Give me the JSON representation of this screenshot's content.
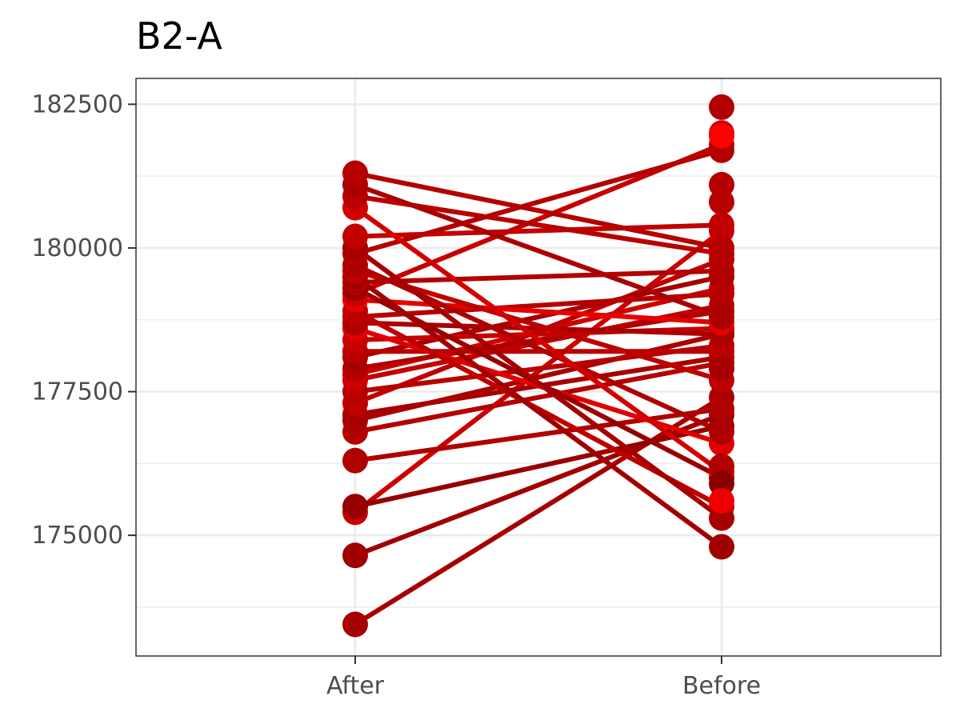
{
  "chart_data": {
    "type": "line",
    "title": "B2-A",
    "xlabel": "",
    "ylabel": "",
    "categories": [
      "After",
      "Before"
    ],
    "y_ticks": [
      175000,
      177500,
      180000,
      182500
    ],
    "ylim": [
      172900,
      182950
    ],
    "grid": true,
    "legend": "none",
    "pairs": [
      {
        "after": 173450,
        "before": 177400,
        "color": "#a60000"
      },
      {
        "after": 174650,
        "before": 177100,
        "color": "#a00000"
      },
      {
        "after": 175400,
        "before": 180300,
        "color": "#cc0000"
      },
      {
        "after": 175500,
        "before": 176900,
        "color": "#960000"
      },
      {
        "after": 176300,
        "before": 177200,
        "color": "#b00000"
      },
      {
        "after": 176800,
        "before": 178000,
        "color": "#b40000"
      },
      {
        "after": 177000,
        "before": 178500,
        "color": "#aa0000"
      },
      {
        "after": 177100,
        "before": 178100,
        "color": "#a80000"
      },
      {
        "after": 177300,
        "before": 179800,
        "color": "#c00000"
      },
      {
        "after": 177500,
        "before": 178300,
        "color": "#b80000"
      },
      {
        "after": 177700,
        "before": 179000,
        "color": "#c40000"
      },
      {
        "after": 177800,
        "before": 179300,
        "color": "#d00000"
      },
      {
        "after": 177900,
        "before": 178900,
        "color": "#b00000"
      },
      {
        "after": 178100,
        "before": 179500,
        "color": "#a40000"
      },
      {
        "after": 178200,
        "before": 178200,
        "color": "#ba0000"
      },
      {
        "after": 178400,
        "before": 178600,
        "color": "#c80000"
      },
      {
        "after": 178600,
        "before": 176600,
        "color": "#e00000"
      },
      {
        "after": 178700,
        "before": 178500,
        "color": "#ac0000"
      },
      {
        "after": 178800,
        "before": 179200,
        "color": "#b60000"
      },
      {
        "after": 178900,
        "before": 175500,
        "color": "#bc0000"
      },
      {
        "after": 179100,
        "before": 178700,
        "color": "#e80000"
      },
      {
        "after": 179200,
        "before": 181800,
        "color": "#c60000"
      },
      {
        "after": 179300,
        "before": 176000,
        "color": "#980000"
      },
      {
        "after": 179400,
        "before": 179600,
        "color": "#b20000"
      },
      {
        "after": 179500,
        "before": 174800,
        "color": "#a20000"
      },
      {
        "after": 179600,
        "before": 177700,
        "color": "#be0000"
      },
      {
        "after": 179700,
        "before": 176800,
        "color": "#ae0000"
      },
      {
        "after": 179900,
        "before": 181700,
        "color": "#b40000"
      },
      {
        "after": 180000,
        "before": 175300,
        "color": "#a60000"
      },
      {
        "after": 180200,
        "before": 180400,
        "color": "#c20000"
      },
      {
        "after": 180700,
        "before": 176100,
        "color": "#d40000"
      },
      {
        "after": 180900,
        "before": 179900,
        "color": "#b80000"
      },
      {
        "after": 181100,
        "before": 178800,
        "color": "#aa0000"
      },
      {
        "after": 181300,
        "before": 180000,
        "color": "#b60000"
      }
    ],
    "extra_points": {
      "before": [
        {
          "y": 182450,
          "color": "#b00000"
        },
        {
          "y": 182000,
          "color": "#cc0000"
        },
        {
          "y": 181950,
          "color": "#ff0000"
        },
        {
          "y": 181100,
          "color": "#b40000"
        },
        {
          "y": 180800,
          "color": "#b80000"
        },
        {
          "y": 177900,
          "color": "#a80000"
        },
        {
          "y": 176200,
          "color": "#b00000"
        },
        {
          "y": 175900,
          "color": "#8a0000"
        },
        {
          "y": 175600,
          "color": "#ee0000"
        }
      ]
    }
  }
}
